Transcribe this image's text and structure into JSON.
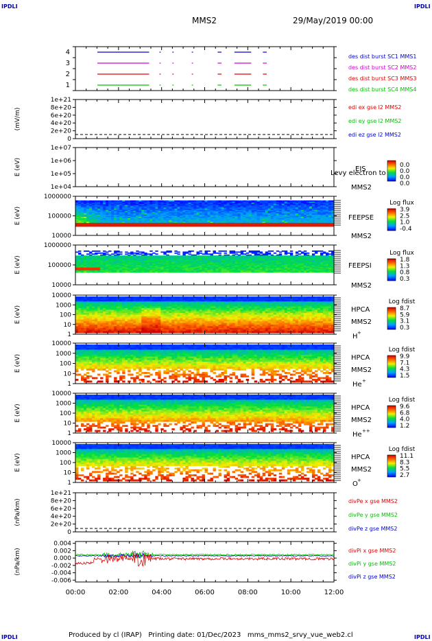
{
  "header": {
    "corner_left_top": "IPDLI",
    "corner_right_top": "IPDLI",
    "corner_left_bottom": "IPDLI",
    "corner_right_bottom": "IPDLI",
    "spacecraft": "MMS2",
    "datetime": "29/May/2019 00:00"
  },
  "footer": {
    "text": "Produced by cl (IRAP)   Printing date: 01/Dec/2023   mms_mms2_srvy_vue_web2.cl"
  },
  "colors": {
    "red": "#e00000",
    "green": "#00c000",
    "blue": "#0000cc",
    "magenta": "#d000d0"
  },
  "chart_data": [
    {
      "type": "line",
      "panel": "burst",
      "ylim": [
        0.5,
        4.5
      ],
      "ticks": [
        "1",
        "2",
        "3",
        "4"
      ],
      "series": [
        {
          "name": "des dist burst SC1 MMS1",
          "color": "#0000cc",
          "y": 4
        },
        {
          "name": "des dist burst SC2 MMS2",
          "color": "#d000d0",
          "y": 3
        },
        {
          "name": "des dist burst SC3 MMS3",
          "color": "#e00000",
          "y": 2
        },
        {
          "name": "des dist burst SC4 MMS4",
          "color": "#00c000",
          "y": 1
        }
      ]
    },
    {
      "type": "line",
      "panel": "edi",
      "ylabel": "(mV/m)",
      "ticks": [
        "1e+21",
        "8e+20",
        "6e+20",
        "4e+20",
        "2e+20",
        "0"
      ],
      "series": [
        {
          "name": "edi ex gse l2 MMS2",
          "color": "#e00000"
        },
        {
          "name": "edi ey gse l2 MMS2",
          "color": "#00c000"
        },
        {
          "name": "edi ez gse l2 MMS2",
          "color": "#0000cc"
        }
      ]
    },
    {
      "type": "heatmap",
      "panel": "eis",
      "ylabel": "E (eV)",
      "ticks": [
        "1e+07",
        "1e+06",
        "1e+05",
        "1e+04"
      ],
      "label1": "EIS",
      "label2": "MMS2",
      "overlay": "Levy electron to",
      "cbar_title": "",
      "cbar_ticks": [
        "0.0",
        "0.0",
        "0.0",
        "0.0"
      ]
    },
    {
      "type": "heatmap",
      "panel": "feepse",
      "ylabel": "E (eV)",
      "ticks": [
        "1000000",
        "100000",
        "10000"
      ],
      "label1": "FEEPSE",
      "label2": "MMS2",
      "cbar_title": "Log flux",
      "cbar_ticks": [
        "3.9",
        "2.5",
        "1.0",
        "-0.4"
      ]
    },
    {
      "type": "heatmap",
      "panel": "feepsi",
      "ylabel": "E (eV)",
      "ticks": [
        "1000000",
        "100000",
        "10000"
      ],
      "label1": "FEEPSI",
      "label2": "MMS2",
      "cbar_title": "Log flux",
      "cbar_ticks": [
        "1.8",
        "1.3",
        "0.8",
        "0.3"
      ]
    },
    {
      "type": "heatmap",
      "panel": "hpca-h",
      "ylabel": "E (eV)",
      "ticks": [
        "10000",
        "1000",
        "100",
        "10",
        "1"
      ],
      "label1": "HPCA",
      "label2": "MMS2",
      "species": "H",
      "species_sup": "+",
      "cbar_title": "Log fdist",
      "cbar_ticks": [
        "8.7",
        "5.9",
        "3.1",
        "0.3"
      ]
    },
    {
      "type": "heatmap",
      "panel": "hpca-he",
      "ylabel": "E (eV)",
      "ticks": [
        "10000",
        "1000",
        "100",
        "10",
        "1"
      ],
      "label1": "HPCA",
      "label2": "MMS2",
      "species": "He",
      "species_sup": "+",
      "cbar_title": "Log fdist",
      "cbar_ticks": [
        "9.9",
        "7.1",
        "4.3",
        "1.5"
      ]
    },
    {
      "type": "heatmap",
      "panel": "hpca-he2",
      "ylabel": "E (eV)",
      "ticks": [
        "10000",
        "1000",
        "100",
        "10",
        "1"
      ],
      "label1": "HPCA",
      "label2": "MMS2",
      "species": "He",
      "species_sup": "++",
      "cbar_title": "Log fdist",
      "cbar_ticks": [
        "9.6",
        "6.8",
        "4.0",
        "1.2"
      ]
    },
    {
      "type": "heatmap",
      "panel": "hpca-o",
      "ylabel": "E (eV)",
      "ticks": [
        "10000",
        "1000",
        "100",
        "10",
        "1"
      ],
      "label1": "HPCA",
      "label2": "MMS2",
      "species": "O",
      "species_sup": "+",
      "cbar_title": "Log fdist",
      "cbar_ticks": [
        "11.1",
        "8.3",
        "5.5",
        "2.7"
      ]
    },
    {
      "type": "line",
      "panel": "divpe",
      "ylabel": "(nPa/km)",
      "ticks": [
        "1e+21",
        "8e+20",
        "6e+20",
        "4e+20",
        "2e+20",
        "0"
      ],
      "series": [
        {
          "name": "divPe x gse MMS2",
          "color": "#e00000"
        },
        {
          "name": "divPe y gse MMS2",
          "color": "#00c000"
        },
        {
          "name": "divPe z gse MMS2",
          "color": "#0000cc"
        }
      ]
    },
    {
      "type": "line",
      "panel": "divpi",
      "ylabel": "(nPa/km)",
      "ylim": [
        -0.0065,
        0.0045
      ],
      "ticks": [
        "0.004",
        "0.002",
        "0.000",
        "-0.002",
        "-0.004",
        "-0.006"
      ],
      "tick_values": [
        0.004,
        0.002,
        0.0,
        -0.002,
        -0.004,
        -0.006
      ],
      "series": [
        {
          "name": "divPi x gse MMS2",
          "color": "#e00000"
        },
        {
          "name": "divPi y gse MMS2",
          "color": "#00c000"
        },
        {
          "name": "divPi z gse MMS2",
          "color": "#0000cc"
        }
      ]
    }
  ],
  "xaxis": {
    "ticks": [
      "00:00",
      "02:00",
      "04:00",
      "06:00",
      "08:00",
      "10:00",
      "12:00"
    ]
  }
}
